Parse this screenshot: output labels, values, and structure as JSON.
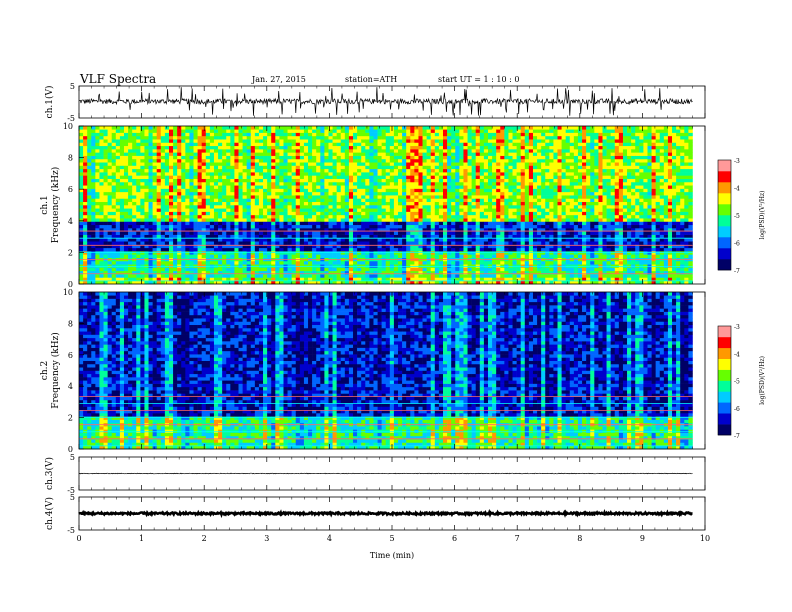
{
  "header": {
    "title": "VLF  Spectra",
    "date": "Jan. 27, 2015",
    "station": "station=ATH",
    "start": "start  UT  =   1  : 10 : 0"
  },
  "chart_data": [
    {
      "type": "line",
      "panel": "ch1",
      "ylabel": "ch.1(V)",
      "ylim": [
        -5,
        5
      ],
      "yticks": [
        "5",
        "-5"
      ],
      "x_range_min": [
        0,
        9.8
      ],
      "baseline_v": 0.2,
      "amplitude_v": 0.8
    },
    {
      "type": "heatmap",
      "panel": "spec1",
      "ylabel_top": "ch.1",
      "ylabel": "Frequency (kHz)",
      "ylim": [
        0,
        10
      ],
      "yticks": [
        "0",
        "2",
        "4",
        "6",
        "8",
        "10"
      ],
      "x_range_min": [
        0,
        9.8
      ],
      "bands_khz": [
        {
          "from": 0.0,
          "to": 0.4,
          "level": "high"
        },
        {
          "from": 0.4,
          "to": 2.0,
          "level": "mid"
        },
        {
          "from": 2.0,
          "to": 4.0,
          "level": "low"
        },
        {
          "from": 4.0,
          "to": 10.0,
          "level": "high"
        }
      ],
      "colorbar": {
        "label": "log(PSD)(V²/Hz)",
        "range": [
          -7,
          -3
        ],
        "ticks": [
          "-3",
          "-4",
          "-5",
          "-6",
          "-7"
        ]
      }
    },
    {
      "type": "heatmap",
      "panel": "spec2",
      "ylabel_top": "ch.2",
      "ylabel": "Frequency (kHz)",
      "ylim": [
        0,
        10
      ],
      "yticks": [
        "0",
        "2",
        "4",
        "6",
        "8",
        "10"
      ],
      "x_range_min": [
        0,
        9.8
      ],
      "bands_khz": [
        {
          "from": 0.0,
          "to": 2.0,
          "level": "mid"
        },
        {
          "from": 2.0,
          "to": 10.0,
          "level": "low"
        }
      ],
      "colorbar": {
        "label": "log(PSD)(V²/Hz)",
        "range": [
          -7,
          -3
        ],
        "ticks": [
          "-3",
          "-4",
          "-5",
          "-6",
          "-7"
        ]
      }
    },
    {
      "type": "line",
      "panel": "ch3",
      "ylabel": "ch.3(V)",
      "ylim": [
        -5,
        5
      ],
      "yticks": [
        "5",
        "-5"
      ],
      "x_range_min": [
        0,
        9.8
      ],
      "baseline_v": 0,
      "amplitude_v": 0.1
    },
    {
      "type": "line",
      "panel": "ch4",
      "ylabel": "ch.4(V)",
      "ylim": [
        -5,
        5
      ],
      "yticks": [
        "5",
        "-5"
      ],
      "x_range_min": [
        0,
        9.8
      ],
      "baseline_v": 0,
      "amplitude_v": 0.3
    }
  ],
  "xaxis": {
    "label": "Time  (min)",
    "ticks": [
      "0",
      "1",
      "2",
      "3",
      "4",
      "5",
      "6",
      "7",
      "8",
      "9",
      "10"
    ],
    "xlim": [
      0,
      10
    ]
  },
  "colors": {
    "colormap": [
      "#000066",
      "#0000cc",
      "#0066ff",
      "#00ccff",
      "#00ff99",
      "#66ff00",
      "#ffff00",
      "#ff9900",
      "#ff0000",
      "#ff9999"
    ],
    "trace": "#000000"
  }
}
